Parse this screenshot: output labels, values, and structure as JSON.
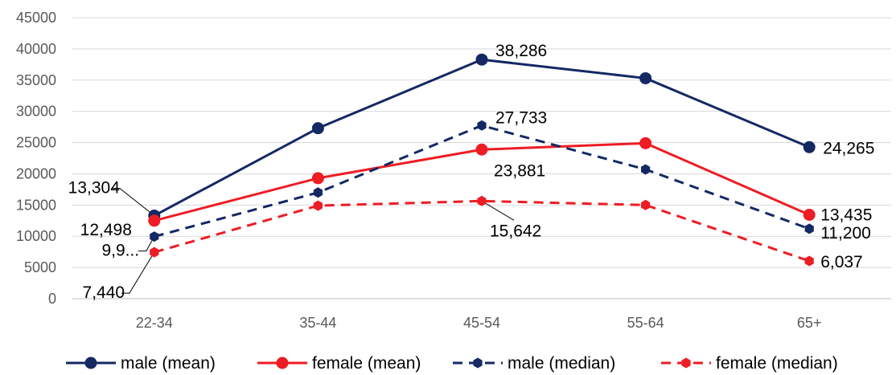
{
  "chart_data": {
    "type": "line",
    "title": "",
    "xlabel": "",
    "ylabel": "",
    "categories": [
      "22-34",
      "35-44",
      "45-54",
      "55-64",
      "65+"
    ],
    "ylim": [
      0,
      45000
    ],
    "y_ticks": [
      "0",
      "5000",
      "10000",
      "15000",
      "20000",
      "25000",
      "30000",
      "35000",
      "40000",
      "45000"
    ],
    "grid": true,
    "legend_position": "bottom",
    "series": [
      {
        "name": "male (mean)",
        "color": "#142864",
        "dash": false,
        "values": [
          13304,
          27300,
          38286,
          35300,
          24265
        ],
        "labels": [
          "13,304",
          "",
          "38,286",
          "",
          "24,265"
        ]
      },
      {
        "name": "female (mean)",
        "color": "#ee1c24",
        "dash": false,
        "values": [
          12498,
          19300,
          23881,
          24900,
          13435
        ],
        "labels": [
          "12,498",
          "",
          "23,881",
          "",
          "13,435"
        ]
      },
      {
        "name": "male (median)",
        "color": "#142864",
        "dash": true,
        "values": [
          9950,
          17000,
          27733,
          20700,
          11200
        ],
        "labels": [
          "9,9...",
          "",
          "27,733",
          "",
          "11,200"
        ]
      },
      {
        "name": "female (median)",
        "color": "#ee1c24",
        "dash": true,
        "values": [
          7440,
          14900,
          15642,
          15000,
          6037
        ],
        "labels": [
          "7,440",
          "",
          "15,642",
          "",
          "6,037"
        ]
      }
    ]
  }
}
